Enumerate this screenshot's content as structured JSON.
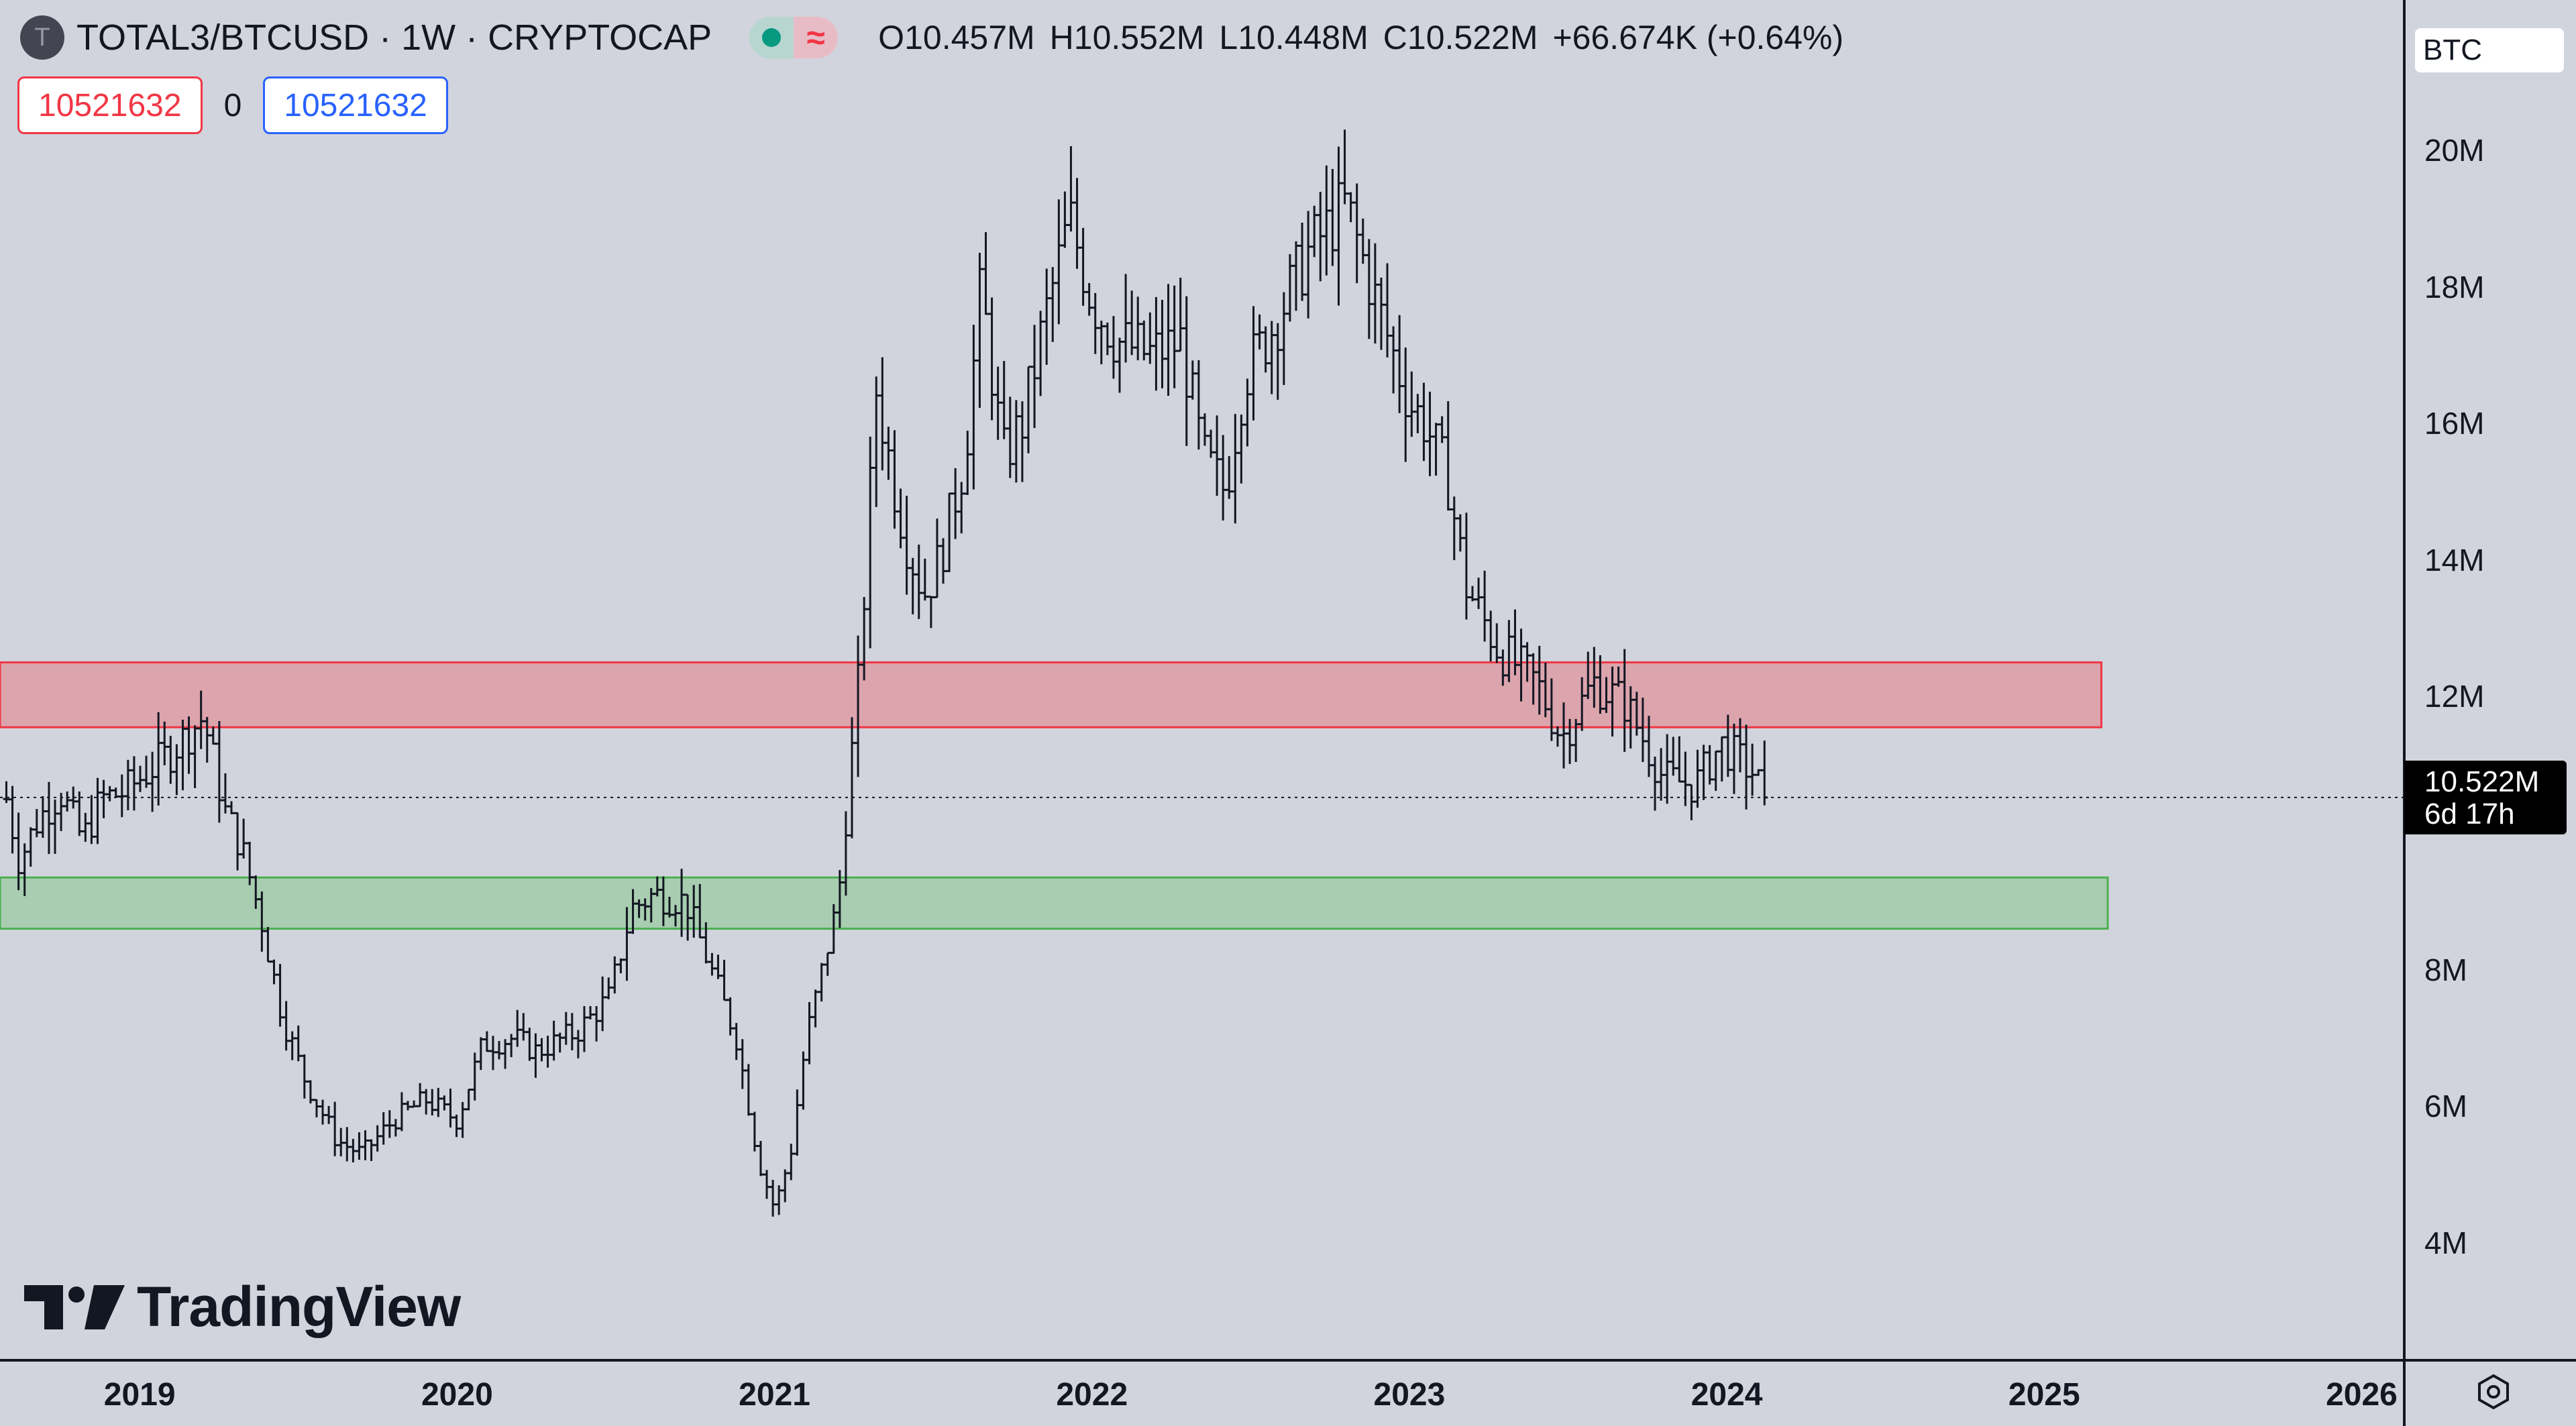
{
  "header": {
    "symbol_icon": "T",
    "title": "TOTAL3/BTCUSD · 1W · CRYPTOCAP",
    "market_status_icon": "green-dot-icon",
    "wave_icon": "≈",
    "ohlc": {
      "o_label": "O",
      "o_value": "10.457M",
      "h_label": "H",
      "h_value": "10.552M",
      "l_label": "L",
      "l_value": "10.448M",
      "c_label": "C",
      "c_value": "10.522M",
      "change": "+66.674K (+0.64%)"
    }
  },
  "inputs": {
    "left_value": "10521632",
    "spread": "0",
    "right_value": "10521632"
  },
  "currency": "BTC",
  "price_label": {
    "value": "10.522M",
    "countdown": "6d 17h"
  },
  "branding": "TradingView",
  "colors": {
    "up": "#089981",
    "down": "#f23645",
    "accent": "#2962ff",
    "resistance_zone": "#dca4ad",
    "support_zone": "#a8cdb0"
  },
  "chart_data": {
    "type": "ohlc",
    "interval": "1W",
    "y_axis_ticks": [
      {
        "label": "20M",
        "value": 20
      },
      {
        "label": "18M",
        "value": 18
      },
      {
        "label": "16M",
        "value": 16
      },
      {
        "label": "14M",
        "value": 14
      },
      {
        "label": "12M",
        "value": 12
      },
      {
        "label": "8M",
        "value": 8
      },
      {
        "label": "6M",
        "value": 6
      },
      {
        "label": "4M",
        "value": 4
      }
    ],
    "ylim": [
      2.3,
      22.2
    ],
    "x_axis_ticks": [
      "2019",
      "2020",
      "2021",
      "2022",
      "2023",
      "2024",
      "2025",
      "2026"
    ],
    "xlim": [
      2018.56,
      2026.13
    ],
    "last_price": 10.522,
    "zones": [
      {
        "kind": "resistance",
        "from_year": 2018.56,
        "to_year": 2025.18,
        "y_low": 11.55,
        "y_high": 12.5
      },
      {
        "kind": "support",
        "from_year": 2018.56,
        "to_year": 2025.2,
        "y_low": 8.6,
        "y_high": 9.35
      }
    ],
    "anchor_points": [
      [
        2018.58,
        10.5
      ],
      [
        2018.62,
        9.6
      ],
      [
        2018.68,
        10.2
      ],
      [
        2018.75,
        10.6
      ],
      [
        2018.82,
        9.9
      ],
      [
        2018.88,
        10.5
      ],
      [
        2018.95,
        10.6
      ],
      [
        2019.1,
        11.2
      ],
      [
        2019.2,
        11.7
      ],
      [
        2019.27,
        10.3
      ],
      [
        2019.32,
        9.8
      ],
      [
        2019.38,
        8.8
      ],
      [
        2019.45,
        7.3
      ],
      [
        2019.52,
        6.4
      ],
      [
        2019.62,
        5.5
      ],
      [
        2019.7,
        5.3
      ],
      [
        2019.8,
        5.8
      ],
      [
        2019.9,
        6.1
      ],
      [
        2020.0,
        5.8
      ],
      [
        2020.08,
        6.9
      ],
      [
        2020.18,
        7.0
      ],
      [
        2020.25,
        6.8
      ],
      [
        2020.38,
        7.1
      ],
      [
        2020.48,
        7.6
      ],
      [
        2020.55,
        8.9
      ],
      [
        2020.62,
        9.1
      ],
      [
        2020.72,
        9.0
      ],
      [
        2020.8,
        8.0
      ],
      [
        2020.88,
        7.0
      ],
      [
        2020.95,
        5.2
      ],
      [
        2021.0,
        4.5
      ],
      [
        2021.05,
        5.3
      ],
      [
        2021.1,
        7.0
      ],
      [
        2021.2,
        9.0
      ],
      [
        2021.27,
        12.5
      ],
      [
        2021.32,
        16.5
      ],
      [
        2021.38,
        15.0
      ],
      [
        2021.42,
        14.2
      ],
      [
        2021.47,
        13.5
      ],
      [
        2021.52,
        14.0
      ],
      [
        2021.6,
        15.5
      ],
      [
        2021.65,
        18.0
      ],
      [
        2021.72,
        15.5
      ],
      [
        2021.78,
        16.0
      ],
      [
        2021.85,
        17.5
      ],
      [
        2021.93,
        19.0
      ],
      [
        2022.0,
        17.8
      ],
      [
        2022.08,
        17.2
      ],
      [
        2022.18,
        17.0
      ],
      [
        2022.28,
        17.2
      ],
      [
        2022.35,
        15.5
      ],
      [
        2022.42,
        15.0
      ],
      [
        2022.48,
        16.7
      ],
      [
        2022.58,
        17.5
      ],
      [
        2022.68,
        18.5
      ],
      [
        2022.8,
        19.2
      ],
      [
        2022.88,
        18.0
      ],
      [
        2022.95,
        17.0
      ],
      [
        2023.0,
        16.3
      ],
      [
        2023.05,
        16.0
      ],
      [
        2023.12,
        15.2
      ],
      [
        2023.18,
        13.6
      ],
      [
        2023.28,
        12.7
      ],
      [
        2023.4,
        12.2
      ],
      [
        2023.48,
        11.4
      ],
      [
        2023.58,
        12.2
      ],
      [
        2023.68,
        11.9
      ],
      [
        2023.8,
        10.8
      ],
      [
        2023.9,
        10.7
      ],
      [
        2023.98,
        11.3
      ],
      [
        2024.08,
        10.9
      ],
      [
        2024.12,
        10.52
      ]
    ]
  }
}
